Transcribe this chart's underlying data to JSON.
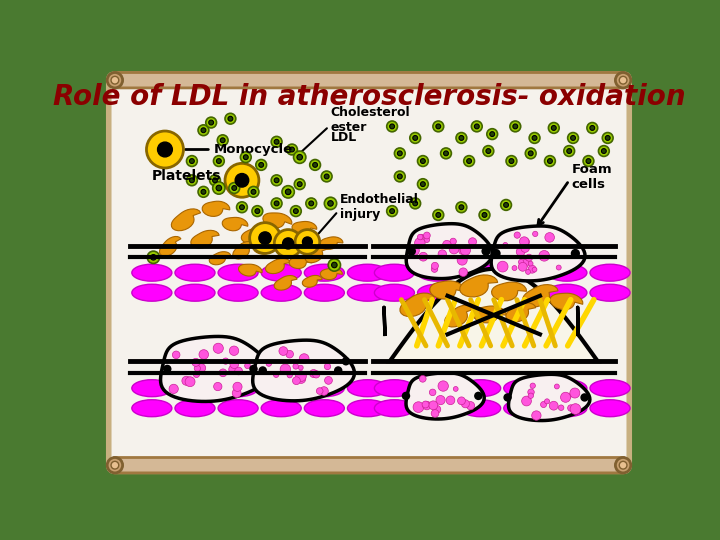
{
  "title": "Role of LDL in atherosclerosis- oxidation",
  "title_color": "#8B0000",
  "title_fontsize": 20,
  "title_fontweight": "bold",
  "bg_color": "#4A7A30",
  "panel_bg": "#F5F2EC",
  "border_color": "#C8B080",
  "magenta": "#FF00FF",
  "dark_magenta": "#CC00CC",
  "orange": "#E8960A",
  "black": "#000000",
  "white": "#FFFFFF",
  "gold": "#FFB800",
  "pink_magenta": "#FF55DD",
  "green_ldl_outer": "#99CC00",
  "green_ldl_inner": "#224400",
  "labels": {
    "monocycle": "Monocycle",
    "cholesterol_ester": "Cholesterol\nester",
    "ldl": "LDL",
    "endothelial_injury": "Endothelial\ninjury",
    "foam_cells": "Foam\ncells",
    "platelets": "Platelets"
  }
}
